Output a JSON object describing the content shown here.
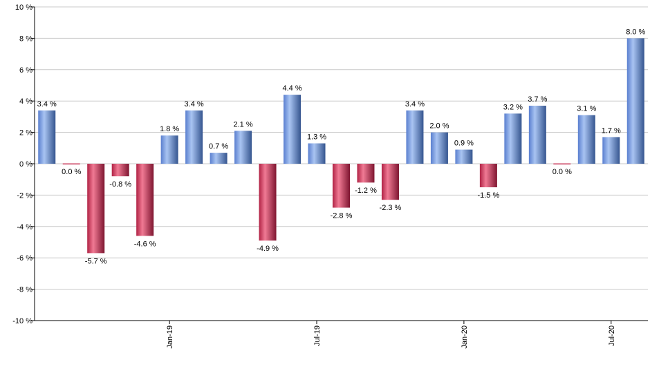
{
  "chart_data": {
    "type": "bar",
    "title": "",
    "xlabel": "",
    "ylabel": "",
    "ylim": [
      -10,
      10
    ],
    "ytick_step": 2,
    "y_unit": " %",
    "grid": true,
    "legend": "none",
    "colors": {
      "positive": "#7f9fd8",
      "negative": "#c8385a",
      "grid": "#c8c8c8",
      "axis": "#000000"
    },
    "values": [
      3.4,
      0.0,
      -5.7,
      -0.8,
      -4.6,
      1.8,
      3.4,
      0.7,
      2.1,
      -4.9,
      4.4,
      1.3,
      -2.8,
      -1.2,
      -2.3,
      3.4,
      2.0,
      0.9,
      -1.5,
      3.2,
      3.7,
      0.0,
      3.1,
      1.7,
      8.0
    ],
    "labels": [
      "3.4 %",
      "0.0 %",
      "-5.7 %",
      "-0.8 %",
      "-4.6 %",
      "1.8 %",
      "3.4 %",
      "0.7 %",
      "2.1 %",
      "-4.9 %",
      "4.4 %",
      "1.3 %",
      "-2.8 %",
      "-1.2 %",
      "-2.3 %",
      "3.4 %",
      "2.0 %",
      "0.9 %",
      "-1.5 %",
      "3.2 %",
      "3.7 %",
      "0.0 %",
      "3.1 %",
      "1.7 %",
      "8.0 %"
    ],
    "label_below": [
      false,
      true,
      false,
      false,
      false,
      false,
      false,
      false,
      false,
      false,
      false,
      false,
      false,
      false,
      false,
      false,
      false,
      false,
      false,
      false,
      false,
      true,
      false,
      false,
      false
    ],
    "x_ticks": [
      {
        "index": 5,
        "label": "Jan-19"
      },
      {
        "index": 11,
        "label": "Jul-19"
      },
      {
        "index": 17,
        "label": "Jan-20"
      },
      {
        "index": 23,
        "label": "Jul-20"
      }
    ],
    "y_ticks": [
      "10 %",
      "8 %",
      "6 %",
      "4 %",
      "2 %",
      "0 %",
      "-2 %",
      "-4 %",
      "-6 %",
      "-8 %",
      "-10 %"
    ]
  }
}
